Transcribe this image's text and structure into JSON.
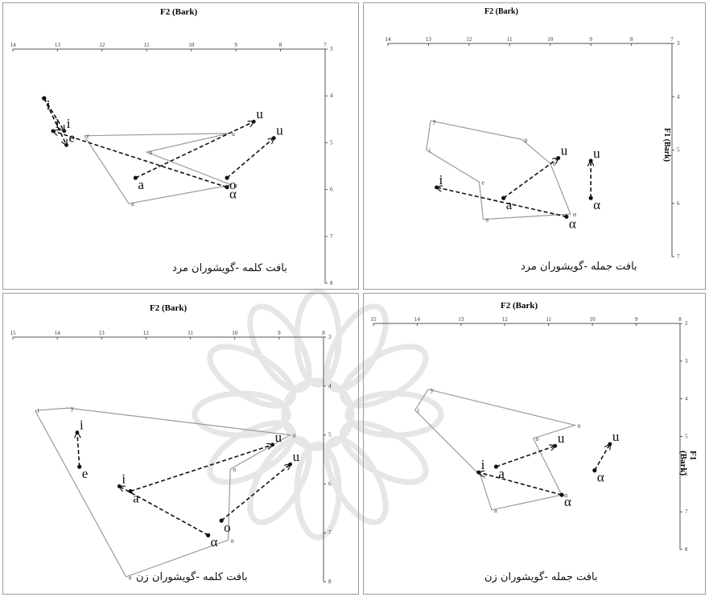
{
  "chart_data": [
    {
      "type": "scatter",
      "caption": "بافت کلمه -گویشوران مرد",
      "xlabel": "F2 (Bark)",
      "ylabel": "",
      "xlim": [
        14,
        7
      ],
      "ylim": [
        3,
        8
      ],
      "x_ticks": [
        "14",
        "13",
        "12",
        "11",
        "10",
        "9",
        "8",
        "7"
      ],
      "y_ticks": [
        "3",
        "4",
        "5",
        "6",
        "7",
        "8"
      ],
      "outline": [
        {
          "label": "e",
          "x": 12.4,
          "y": 4.85
        },
        {
          "label": "u",
          "x": 9.15,
          "y": 4.8
        },
        {
          "label": "o",
          "x": 11.0,
          "y": 5.2
        },
        {
          "label": "α",
          "x": 9.1,
          "y": 5.9
        },
        {
          "label": "a",
          "x": 11.4,
          "y": 6.3
        },
        {
          "label": "e",
          "x": 12.4,
          "y": 4.85
        }
      ],
      "arrows": [
        {
          "from": {
            "label": "i",
            "x": 13.3,
            "y": 4.05
          },
          "to": {
            "label": "i",
            "x": 12.85,
            "y": 4.75
          }
        },
        {
          "from": {
            "label": "i",
            "x": 13.3,
            "y": 4.05
          },
          "to": {
            "label": "e",
            "x": 12.8,
            "y": 5.05
          }
        },
        {
          "from": {
            "label": "α",
            "x": 9.2,
            "y": 5.95
          },
          "to": {
            "label": "i",
            "x": 13.1,
            "y": 4.75
          }
        },
        {
          "from": {
            "label": "a",
            "x": 11.25,
            "y": 5.75
          },
          "to": {
            "label": "u",
            "x": 8.6,
            "y": 4.55
          }
        },
        {
          "from": {
            "label": "o",
            "x": 9.2,
            "y": 5.75
          },
          "to": {
            "label": "u",
            "x": 8.15,
            "y": 4.9
          }
        }
      ]
    },
    {
      "type": "scatter",
      "caption": "بافت جمله -گویشوران مرد",
      "xlabel": "F2 (Bark)",
      "ylabel": "F1 (Bark)",
      "xlim": [
        14,
        7
      ],
      "ylim": [
        3,
        7
      ],
      "x_ticks": [
        "14",
        "13",
        "12",
        "11",
        "10",
        "9",
        "8",
        "7"
      ],
      "y_ticks": [
        "3",
        "4",
        "5",
        "6",
        "7"
      ],
      "outline": [
        {
          "label": "y",
          "x": 12.95,
          "y": 4.45
        },
        {
          "label": "i",
          "x": 13.05,
          "y": 5.0
        },
        {
          "label": "e",
          "x": 11.75,
          "y": 5.6
        },
        {
          "label": "a",
          "x": 11.65,
          "y": 6.3
        },
        {
          "label": "α",
          "x": 9.5,
          "y": 6.2
        },
        {
          "label": "o",
          "x": 10.0,
          "y": 5.25
        },
        {
          "label": "u",
          "x": 10.7,
          "y": 4.8
        },
        {
          "label": "y",
          "x": 12.95,
          "y": 4.45
        }
      ],
      "arrows": [
        {
          "from": {
            "label": "α",
            "x": 9.6,
            "y": 6.25
          },
          "to": {
            "label": "i",
            "x": 12.8,
            "y": 5.7
          }
        },
        {
          "from": {
            "label": "a",
            "x": 11.15,
            "y": 5.9
          },
          "to": {
            "label": "u",
            "x": 9.8,
            "y": 5.15
          }
        },
        {
          "from": {
            "label": "α",
            "x": 9.0,
            "y": 5.9
          },
          "to": {
            "label": "u",
            "x": 9.0,
            "y": 5.2
          }
        }
      ]
    },
    {
      "type": "scatter",
      "caption": "بافت کلمه -گویشوران زن",
      "xlabel": "F2 (Bark)",
      "ylabel": "",
      "xlim": [
        15,
        8
      ],
      "ylim": [
        3,
        8
      ],
      "x_ticks": [
        "15",
        "14",
        "13",
        "12",
        "11",
        "10",
        "9",
        "8"
      ],
      "y_ticks": [
        "3",
        "4",
        "5",
        "6",
        "7",
        "8"
      ],
      "outline": [
        {
          "label": "i",
          "x": 14.5,
          "y": 4.5
        },
        {
          "label": "y",
          "x": 13.75,
          "y": 4.45
        },
        {
          "label": "u",
          "x": 8.75,
          "y": 5.0
        },
        {
          "label": "o",
          "x": 10.1,
          "y": 5.7
        },
        {
          "label": "α",
          "x": 10.15,
          "y": 7.15
        },
        {
          "label": "a",
          "x": 12.45,
          "y": 7.9
        },
        {
          "label": "i",
          "x": 14.5,
          "y": 4.5
        }
      ],
      "arrows": [
        {
          "from": {
            "label": "e",
            "x": 13.5,
            "y": 5.65
          },
          "to": {
            "label": "i",
            "x": 13.55,
            "y": 4.95
          }
        },
        {
          "from": {
            "label": "a",
            "x": 12.35,
            "y": 6.15
          },
          "to": {
            "label": "u",
            "x": 9.15,
            "y": 5.2
          }
        },
        {
          "from": {
            "label": "α",
            "x": 10.6,
            "y": 7.05
          },
          "to": {
            "label": "i",
            "x": 12.6,
            "y": 6.05
          }
        },
        {
          "from": {
            "label": "o",
            "x": 10.3,
            "y": 6.75
          },
          "to": {
            "label": "u",
            "x": 8.75,
            "y": 5.6
          }
        }
      ]
    },
    {
      "type": "scatter",
      "caption": "بافت جمله -گویشوران زن",
      "xlabel": "F2 (Bark)",
      "ylabel": "F1 (Bark)",
      "xlim": [
        15,
        8
      ],
      "ylim": [
        2,
        8
      ],
      "x_ticks": [
        "15",
        "14",
        "13",
        "12",
        "11",
        "10",
        "9",
        "8"
      ],
      "y_ticks": [
        "2",
        "3",
        "4",
        "5",
        "6",
        "7",
        "8"
      ],
      "outline": [
        {
          "label": "y",
          "x": 13.75,
          "y": 3.75
        },
        {
          "label": "i",
          "x": 14.05,
          "y": 4.3
        },
        {
          "label": "e",
          "x": 12.55,
          "y": 6.05
        },
        {
          "label": "a",
          "x": 12.3,
          "y": 6.95
        },
        {
          "label": "α",
          "x": 10.7,
          "y": 6.55
        },
        {
          "label": "o",
          "x": 11.35,
          "y": 5.05
        },
        {
          "label": "u",
          "x": 10.4,
          "y": 4.7
        },
        {
          "label": "y",
          "x": 13.75,
          "y": 3.75
        }
      ],
      "arrows": [
        {
          "from": {
            "label": "α",
            "x": 10.7,
            "y": 6.55
          },
          "to": {
            "label": "i",
            "x": 12.6,
            "y": 5.95
          }
        },
        {
          "from": {
            "label": "a",
            "x": 12.2,
            "y": 5.8
          },
          "to": {
            "label": "u",
            "x": 10.85,
            "y": 5.25
          }
        },
        {
          "from": {
            "label": "α",
            "x": 9.95,
            "y": 5.9
          },
          "to": {
            "label": "u",
            "x": 9.6,
            "y": 5.2
          }
        }
      ]
    }
  ]
}
